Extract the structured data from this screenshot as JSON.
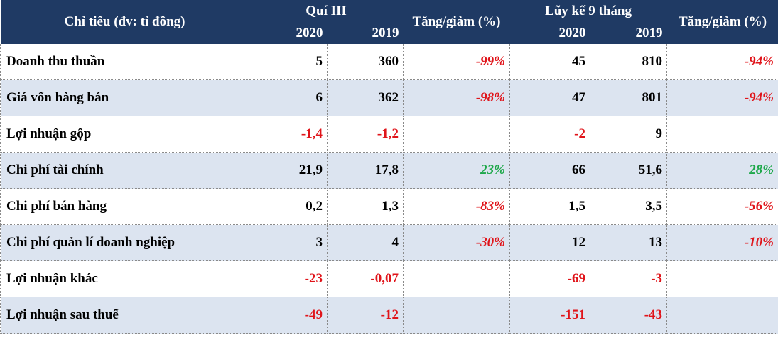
{
  "header": {
    "indicator_label": "Chỉ tiêu (đv: tỉ đồng)",
    "quarter_group": "Quí III",
    "ytd_group": "Lũy kế 9 tháng",
    "year_2020": "2020",
    "year_2019": "2019",
    "change_label": "Tăng/giảm (%)"
  },
  "rows": [
    {
      "label": "Doanh thu thuần",
      "q_2020": "5",
      "q_2019": "360",
      "q_change": "-99%",
      "ytd_2020": "45",
      "ytd_2019": "810",
      "ytd_change": "-94%"
    },
    {
      "label": "Giá vốn hàng bán",
      "q_2020": "6",
      "q_2019": "362",
      "q_change": "-98%",
      "ytd_2020": "47",
      "ytd_2019": "801",
      "ytd_change": "-94%"
    },
    {
      "label": "Lợi nhuận gộp",
      "q_2020": "-1,4",
      "q_2019": "-1,2",
      "q_change": "",
      "ytd_2020": "-2",
      "ytd_2019": "9",
      "ytd_change": ""
    },
    {
      "label": "Chi phí tài chính",
      "q_2020": "21,9",
      "q_2019": "17,8",
      "q_change": "23%",
      "ytd_2020": "66",
      "ytd_2019": "51,6",
      "ytd_change": "28%"
    },
    {
      "label": "Chi phí bán hàng",
      "q_2020": "0,2",
      "q_2019": "1,3",
      "q_change": "-83%",
      "ytd_2020": "1,5",
      "ytd_2019": "3,5",
      "ytd_change": "-56%"
    },
    {
      "label": "Chi phí quản lí doanh nghiệp",
      "q_2020": "3",
      "q_2019": "4",
      "q_change": "-30%",
      "ytd_2020": "12",
      "ytd_2019": "13",
      "ytd_change": "-10%"
    },
    {
      "label": "Lợi nhuận khác",
      "q_2020": "-23",
      "q_2019": "-0,07",
      "q_change": "",
      "ytd_2020": "-69",
      "ytd_2019": "-3",
      "ytd_change": ""
    },
    {
      "label": "Lợi nhuận sau thuế",
      "q_2020": "-49",
      "q_2019": "-12",
      "q_change": "",
      "ytd_2020": "-151",
      "ytd_2019": "-43",
      "ytd_change": ""
    }
  ],
  "colors": {
    "header_bg": "#1f3a64",
    "alt_row_bg": "#dce4f0",
    "negative": "#e0141a",
    "positive": "#1ea84a"
  }
}
